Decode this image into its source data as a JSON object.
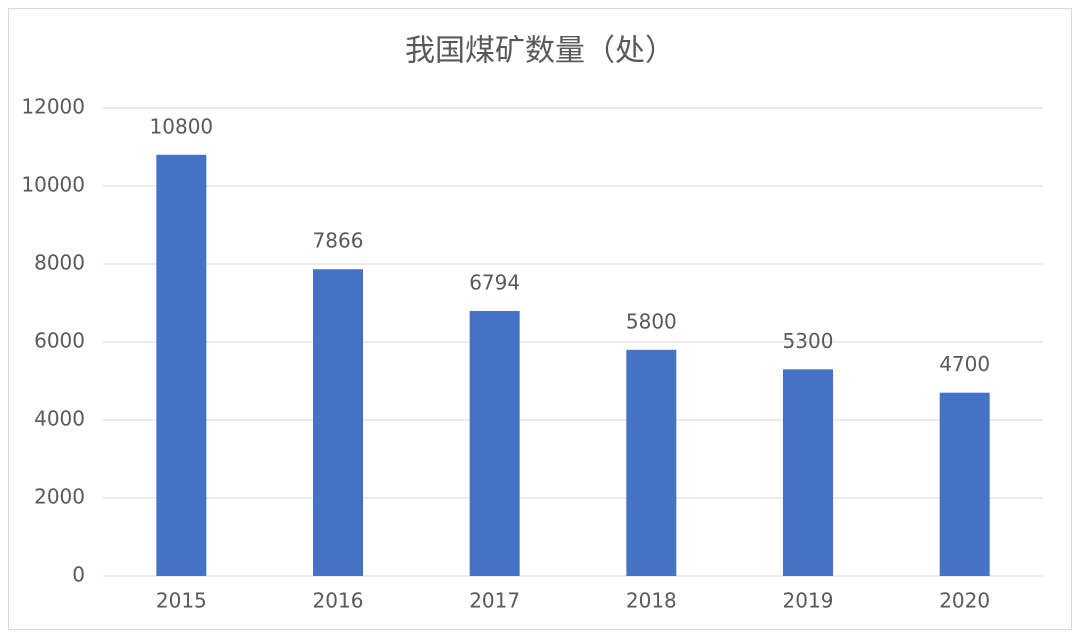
{
  "chart_data": {
    "type": "bar",
    "title": "我国煤矿数量（处）",
    "categories": [
      "2015",
      "2016",
      "2017",
      "2018",
      "2019",
      "2020"
    ],
    "values": [
      10800,
      7866,
      6794,
      5800,
      5300,
      4700
    ],
    "color": "#4472c4",
    "ylim": [
      0,
      12000
    ],
    "yticks": [
      0,
      2000,
      4000,
      6000,
      8000,
      10000,
      12000
    ],
    "grid": true
  }
}
